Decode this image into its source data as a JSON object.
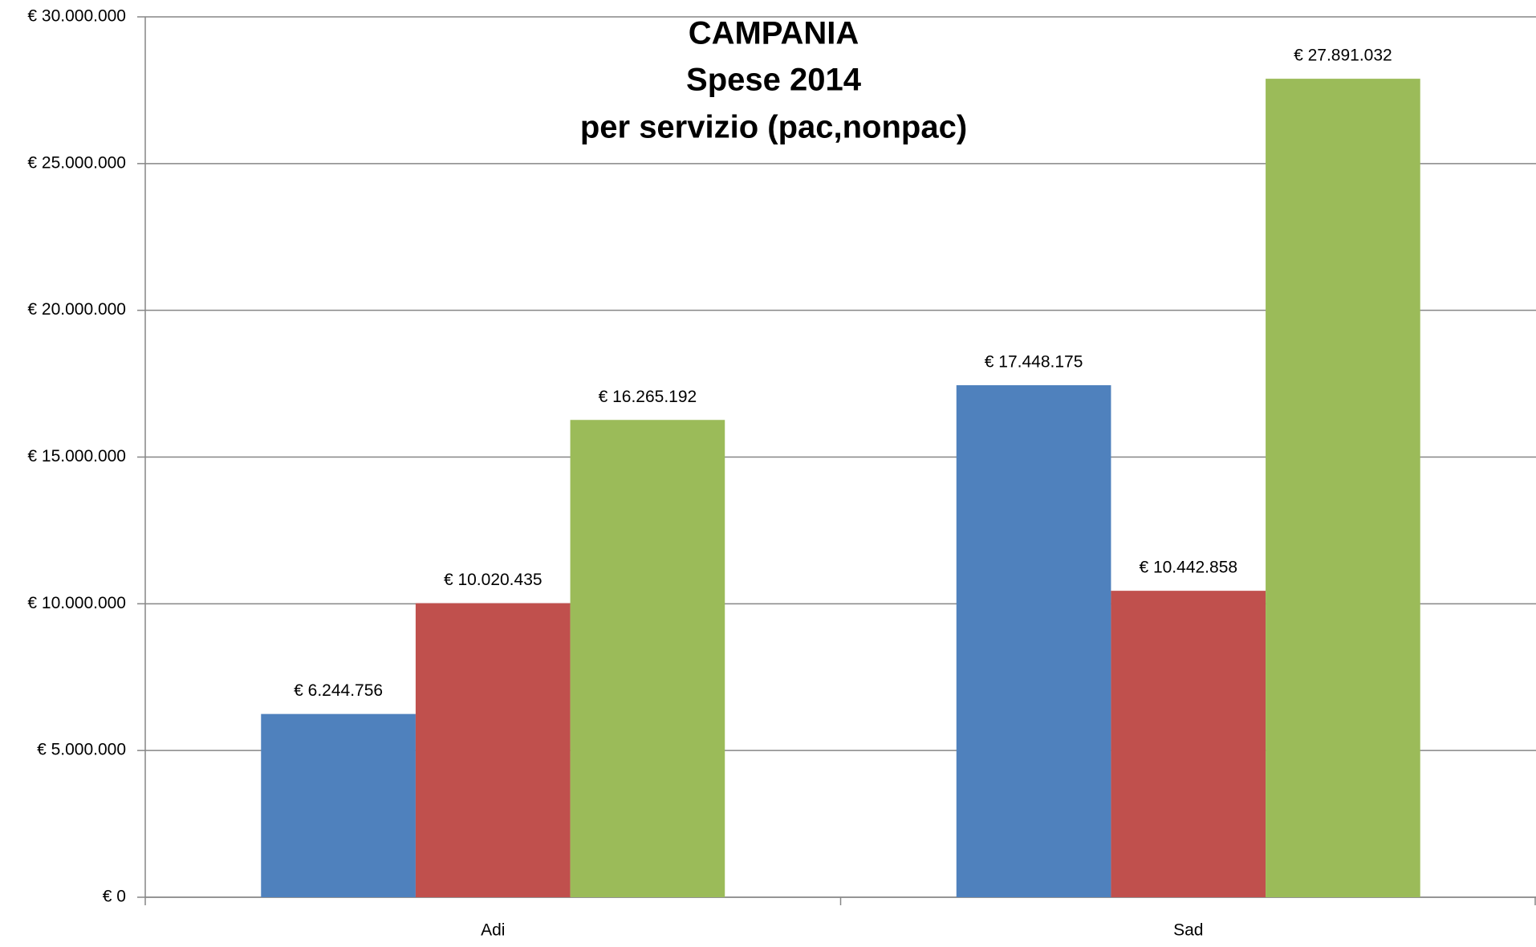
{
  "chart_data": {
    "type": "bar",
    "title": [
      "CAMPANIA",
      "Spese  2014",
      "per servizio (pac,nonpac)"
    ],
    "categories": [
      "Adi",
      "Sad"
    ],
    "series": [
      {
        "color": "#4f81bd",
        "values": [
          6244756,
          17448175
        ],
        "value_labels": [
          "€ 6.244.756",
          "€ 17.448.175"
        ]
      },
      {
        "color": "#c0504d",
        "values": [
          10020435,
          10442858
        ],
        "value_labels": [
          "€ 10.020.435",
          "€ 10.442.858"
        ]
      },
      {
        "color": "#9bbb59",
        "values": [
          16265192,
          27891032
        ],
        "value_labels": [
          "€ 16.265.192",
          "€ 27.891.032"
        ]
      }
    ],
    "ylim": [
      0,
      30000000
    ],
    "yticks": [
      {
        "value": 0,
        "label": "€ 0"
      },
      {
        "value": 5000000,
        "label": "€ 5.000.000"
      },
      {
        "value": 10000000,
        "label": "€ 10.000.000"
      },
      {
        "value": 15000000,
        "label": "€ 15.000.000"
      },
      {
        "value": 20000000,
        "label": "€ 20.000.000"
      },
      {
        "value": 25000000,
        "label": "€ 25.000.000"
      },
      {
        "value": 30000000,
        "label": "€ 30.000.000"
      }
    ],
    "grid": true
  }
}
